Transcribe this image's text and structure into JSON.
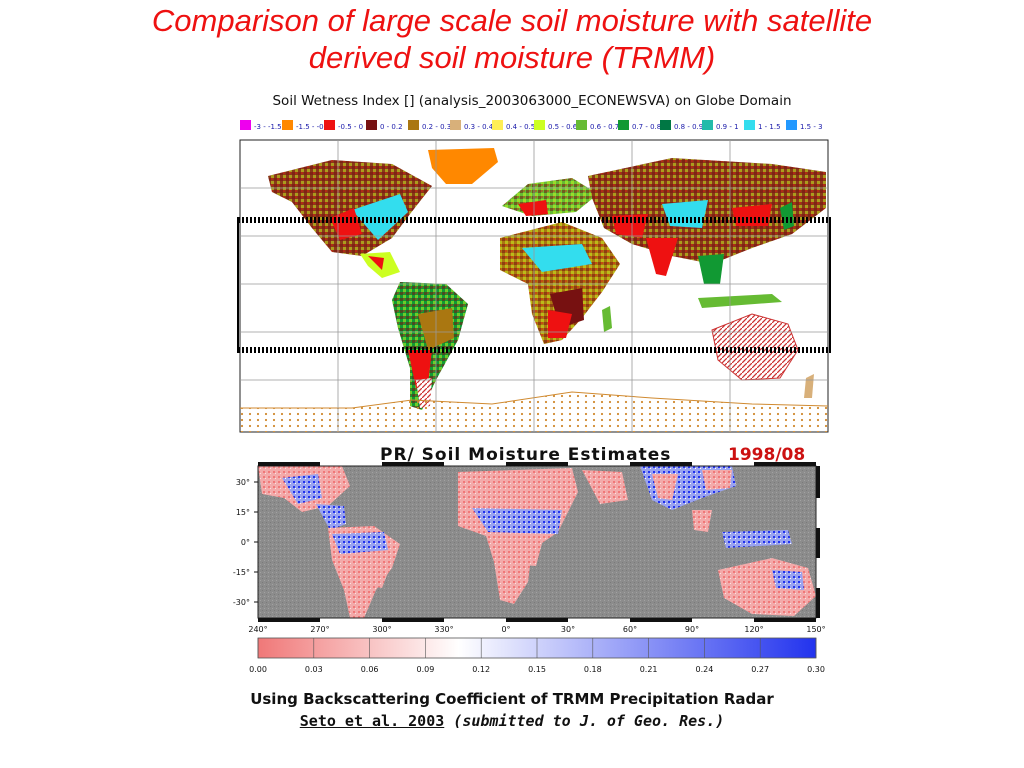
{
  "title": {
    "line1": "Comparison of large scale soil moisture with satellite",
    "line2": "derived soil moisture (TRMM)"
  },
  "top_map": {
    "heading": "Soil Wetness Index [] (analysis_2003063000_ECONEWSVA) on Globe Domain",
    "legend": [
      {
        "label": "-3 - -1.5",
        "color": "#ee00ee"
      },
      {
        "label": "-1.5 - -0.5",
        "color": "#ff8800"
      },
      {
        "label": "-0.5 - 0",
        "color": "#ee1111"
      },
      {
        "label": "0 - 0.2",
        "color": "#771111"
      },
      {
        "label": "0.2 - 0.3",
        "color": "#aa7711"
      },
      {
        "label": "0.3 - 0.4",
        "color": "#d8b07a"
      },
      {
        "label": "0.4 - 0.5",
        "color": "#ffee55"
      },
      {
        "label": "0.5 - 0.6",
        "color": "#ccff22"
      },
      {
        "label": "0.6 - 0.7",
        "color": "#66bb33"
      },
      {
        "label": "0.7 - 0.8",
        "color": "#119933"
      },
      {
        "label": "0.8 - 0.9",
        "color": "#007744"
      },
      {
        "label": "0.9 - 1",
        "color": "#22bbaa"
      },
      {
        "label": "1 - 1.5",
        "color": "#33ddee"
      },
      {
        "label": "1.5 - 3",
        "color": "#2299ff"
      }
    ]
  },
  "bottom_map": {
    "heading": "PR/ Soil Moisture Estimates",
    "date": "1998/08",
    "lat_ticks": [
      "30°",
      "15°",
      "0°",
      "-15°",
      "-30°"
    ],
    "lon_ticks": [
      "240°",
      "270°",
      "300°",
      "330°",
      "0°",
      "30°",
      "60°",
      "90°",
      "120°",
      "150°"
    ],
    "colorbar_ticks": [
      "0.00",
      "0.03",
      "0.06",
      "0.09",
      "0.12",
      "0.15",
      "0.18",
      "0.21",
      "0.24",
      "0.27",
      "0.30"
    ],
    "colors": {
      "dry": "#f07878",
      "mid": "#ffffff",
      "wet": "#2233ee",
      "ocean": "#8c8c8c"
    }
  },
  "footer": {
    "line1": "Using Backscattering Coefficient of TRMM Precipitation Radar",
    "citation": "Seto et al. 2003",
    "note": "(submitted to J. of Geo. Res.)"
  }
}
